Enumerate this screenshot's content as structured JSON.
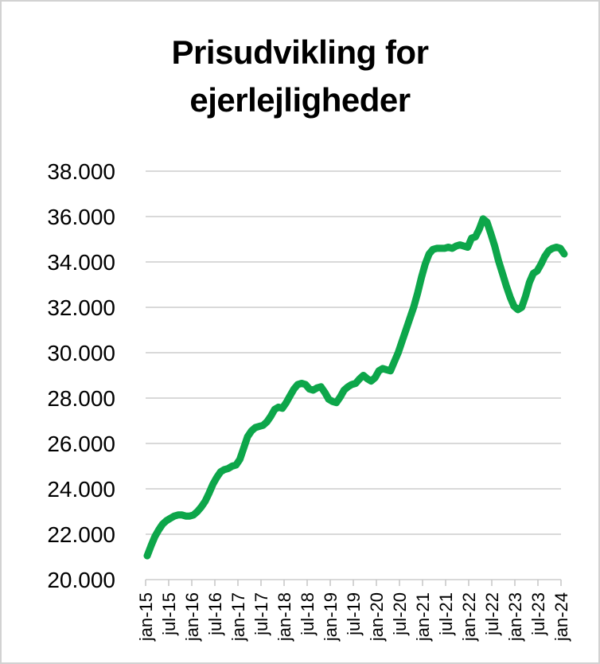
{
  "frame": {
    "background": "#ffffff",
    "border_color": "#d2d2d2"
  },
  "chart_data": {
    "type": "line",
    "title": "Prisudvikling for ejerlejligheder",
    "xlabel": "",
    "ylabel": "",
    "ylim": [
      20000,
      38000
    ],
    "y_step": 2000,
    "grid": "horizontal",
    "legend": "none",
    "line_color": "#0DA64A",
    "gridline_color": "#d9d9d9",
    "tick_color": "#c6c6c6",
    "label_color": "#000000",
    "y_tick_labels": [
      "38.000",
      "36.000",
      "34.000",
      "32.000",
      "30.000",
      "28.000",
      "26.000",
      "24.000",
      "22.000",
      "20.000"
    ],
    "x_tick_labels": [
      "jan-15",
      "jul-15",
      "jan-16",
      "jul-16",
      "jan-17",
      "jul-17",
      "jan-18",
      "jul-18",
      "jan-19",
      "jul-19",
      "jan-20",
      "jul-20",
      "jan-21",
      "jul-21",
      "jan-22",
      "jul-22",
      "jan-23",
      "jul-23",
      "jan-24"
    ],
    "x_start": "jan-15",
    "x_end": "jan-24",
    "x_frequency": "monthly",
    "values_monthly": [
      21050,
      21500,
      21900,
      22200,
      22450,
      22600,
      22700,
      22800,
      22850,
      22850,
      22800,
      22800,
      22850,
      23000,
      23200,
      23450,
      23800,
      24200,
      24500,
      24750,
      24850,
      24900,
      25000,
      25050,
      25300,
      25800,
      26300,
      26550,
      26700,
      26750,
      26800,
      26950,
      27200,
      27500,
      27600,
      27550,
      27800,
      28100,
      28400,
      28600,
      28650,
      28600,
      28400,
      28350,
      28450,
      28500,
      28250,
      27950,
      27850,
      27800,
      28050,
      28350,
      28500,
      28600,
      28650,
      28850,
      29000,
      28850,
      28750,
      28900,
      29200,
      29300,
      29250,
      29200,
      29600,
      30000,
      30500,
      31000,
      31500,
      32000,
      32600,
      33300,
      33900,
      34350,
      34550,
      34600,
      34600,
      34600,
      34650,
      34600,
      34700,
      34750,
      34700,
      34650,
      35050,
      35100,
      35450,
      35900,
      35750,
      35250,
      34700,
      34050,
      33500,
      32950,
      32450,
      32050,
      31900,
      32000,
      32500,
      33100,
      33500,
      33600,
      33900,
      34250,
      34500,
      34600,
      34650,
      34600,
      34350
    ]
  }
}
